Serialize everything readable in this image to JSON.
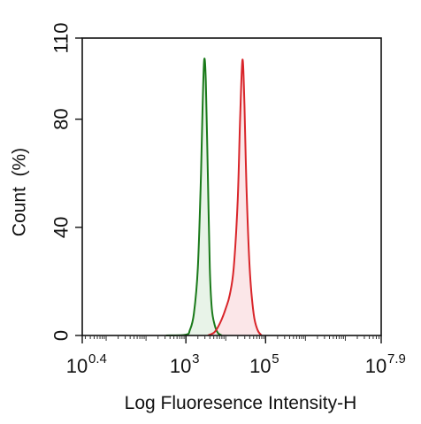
{
  "chart_data": {
    "type": "area",
    "xlabel": "Log Fluoresence Intensity-H",
    "ylabel": "Count  (%)",
    "xscale": "log10",
    "xlim_exponent": [
      0.4,
      7.9
    ],
    "ylim": [
      0,
      110
    ],
    "grid": false,
    "x_ticks": [
      {
        "base": "10",
        "exp": "0.4"
      },
      {
        "base": "10",
        "exp": "3"
      },
      {
        "base": "10",
        "exp": "5"
      },
      {
        "base": "10",
        "exp": "7.9"
      }
    ],
    "y_ticks": [
      "0",
      "40",
      "80",
      "110"
    ],
    "series": [
      {
        "color": "#1a7a1a",
        "fill": "#e6f2e6",
        "points": [
          [
            2.5,
            0
          ],
          [
            3.0,
            0.3
          ],
          [
            3.1,
            2
          ],
          [
            3.2,
            8
          ],
          [
            3.3,
            25
          ],
          [
            3.38,
            60
          ],
          [
            3.42,
            85
          ],
          [
            3.46,
            102
          ],
          [
            3.5,
            94
          ],
          [
            3.55,
            60
          ],
          [
            3.6,
            25
          ],
          [
            3.65,
            10
          ],
          [
            3.72,
            4
          ],
          [
            3.8,
            1
          ],
          [
            3.9,
            0
          ]
        ]
      },
      {
        "color": "#d9252a",
        "fill": "#fbe3e6",
        "points": [
          [
            3.55,
            0
          ],
          [
            3.7,
            1
          ],
          [
            3.8,
            3
          ],
          [
            3.9,
            6
          ],
          [
            4.0,
            10
          ],
          [
            4.1,
            15
          ],
          [
            4.2,
            25
          ],
          [
            4.3,
            50
          ],
          [
            4.36,
            80
          ],
          [
            4.42,
            102
          ],
          [
            4.47,
            85
          ],
          [
            4.52,
            55
          ],
          [
            4.6,
            25
          ],
          [
            4.7,
            8
          ],
          [
            4.8,
            2
          ],
          [
            4.9,
            0
          ]
        ]
      }
    ]
  }
}
